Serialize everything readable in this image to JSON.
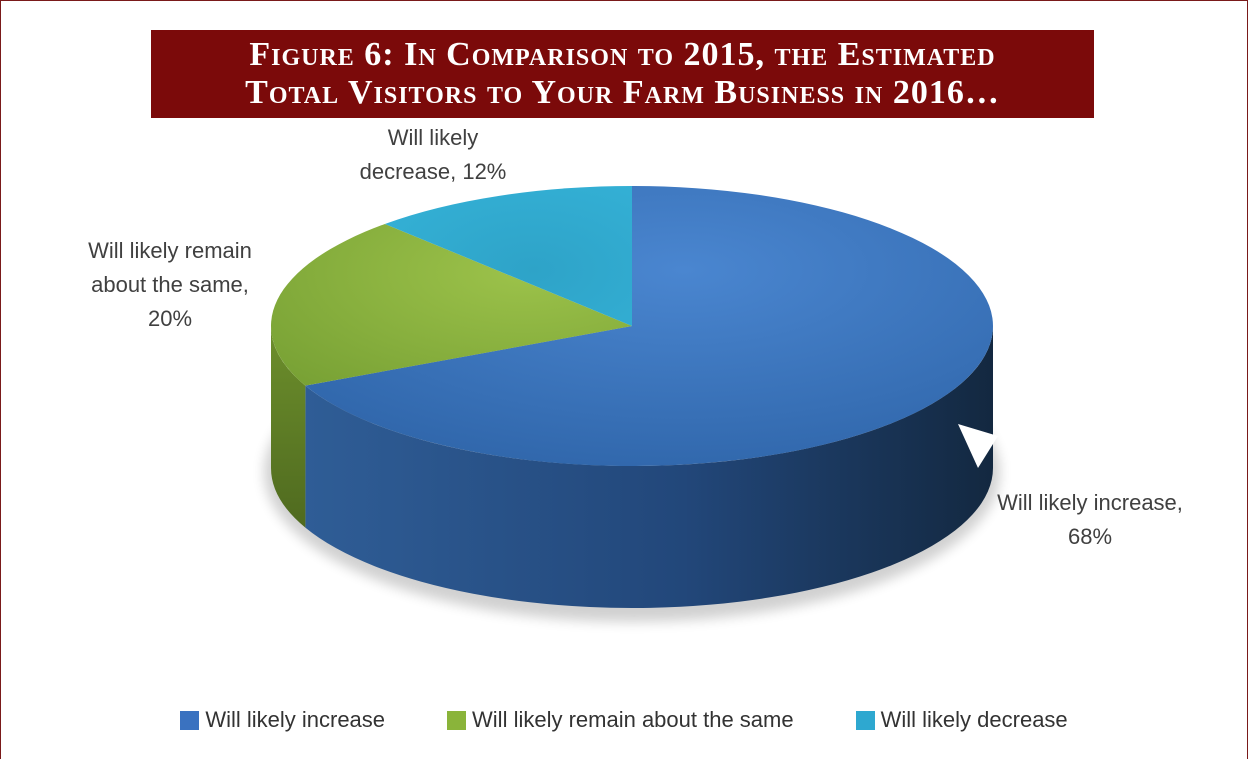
{
  "figure": {
    "title_line1": "Figure 6: In Comparison to 2015, the Estimated",
    "title_line2": "Total Visitors to Your Farm Business in 2016…"
  },
  "chart_data": {
    "type": "pie",
    "title": "Figure 6: In Comparison to 2015, the Estimated Total Visitors to Your Farm Business in 2016…",
    "categories": [
      "Will likely increase",
      "Will likely remain about the same",
      "Will likely decrease"
    ],
    "values": [
      68,
      20,
      12
    ],
    "unit": "%",
    "colors": [
      "#3a78c8",
      "#8fb83c",
      "#2eaed0"
    ],
    "data_labels": [
      [
        "Will likely increase,",
        "68%"
      ],
      [
        "Will likely remain",
        "about the same,",
        "20%"
      ],
      [
        "Will likely",
        "decrease, 12%"
      ]
    ],
    "style": "3d",
    "legend_position": "bottom"
  }
}
